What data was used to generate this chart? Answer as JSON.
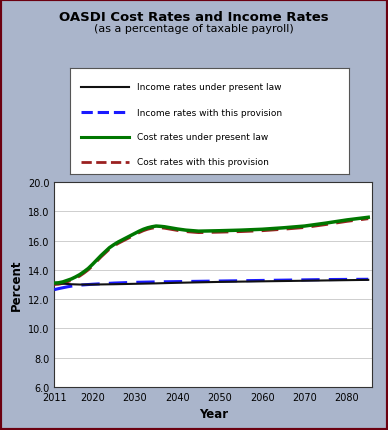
{
  "title": "OASDI Cost Rates and Income Rates",
  "subtitle": "(as a percentage of taxable payroll)",
  "xlabel": "Year",
  "ylabel": "Percent",
  "ylim": [
    6.0,
    20.0
  ],
  "yticks": [
    6.0,
    8.0,
    10.0,
    12.0,
    14.0,
    16.0,
    18.0,
    20.0
  ],
  "xticks": [
    2011,
    2020,
    2030,
    2040,
    2050,
    2060,
    2070,
    2080
  ],
  "xlim": [
    2011,
    2086
  ],
  "background_color": "#aab5cb",
  "plot_bg_color": "#ffffff",
  "border_color": "#6b0010",
  "legend_labels": [
    "Income rates under present law",
    "Income rates with this provision",
    "Cost rates under present law",
    "Cost rates with this provision"
  ],
  "income_present_law_x": [
    2011,
    2012,
    2013,
    2014,
    2015,
    2016,
    2017,
    2018,
    2019,
    2020,
    2025,
    2030,
    2035,
    2040,
    2045,
    2050,
    2055,
    2060,
    2065,
    2070,
    2075,
    2080,
    2085
  ],
  "income_present_law_y": [
    13.1,
    13.08,
    13.06,
    13.04,
    13.02,
    13.01,
    13.0,
    13.0,
    13.0,
    13.0,
    13.02,
    13.05,
    13.08,
    13.12,
    13.15,
    13.18,
    13.2,
    13.22,
    13.24,
    13.26,
    13.28,
    13.3,
    13.32
  ],
  "income_provision_x": [
    2011,
    2012,
    2013,
    2014,
    2015,
    2016,
    2017,
    2018,
    2019,
    2020,
    2025,
    2030,
    2035,
    2040,
    2045,
    2050,
    2055,
    2060,
    2065,
    2070,
    2075,
    2080,
    2085
  ],
  "income_provision_y": [
    12.65,
    12.72,
    12.78,
    12.84,
    12.89,
    12.93,
    12.96,
    12.98,
    13.0,
    13.02,
    13.1,
    13.15,
    13.18,
    13.2,
    13.22,
    13.24,
    13.26,
    13.28,
    13.3,
    13.32,
    13.34,
    13.35,
    13.36
  ],
  "cost_present_law_x": [
    2011,
    2012,
    2013,
    2014,
    2015,
    2016,
    2017,
    2018,
    2019,
    2020,
    2021,
    2022,
    2023,
    2024,
    2025,
    2026,
    2027,
    2028,
    2029,
    2030,
    2031,
    2032,
    2033,
    2034,
    2035,
    2036,
    2037,
    2038,
    2039,
    2040,
    2042,
    2045,
    2050,
    2055,
    2060,
    2065,
    2070,
    2075,
    2080,
    2085
  ],
  "cost_present_law_y": [
    13.1,
    13.12,
    13.18,
    13.28,
    13.38,
    13.52,
    13.68,
    13.88,
    14.1,
    14.38,
    14.68,
    14.98,
    15.25,
    15.52,
    15.72,
    15.9,
    16.05,
    16.2,
    16.35,
    16.5,
    16.65,
    16.78,
    16.88,
    16.95,
    17.0,
    16.98,
    16.95,
    16.9,
    16.85,
    16.8,
    16.72,
    16.65,
    16.68,
    16.72,
    16.78,
    16.88,
    17.0,
    17.2,
    17.42,
    17.6
  ],
  "cost_provision_x": [
    2011,
    2012,
    2013,
    2014,
    2015,
    2016,
    2017,
    2018,
    2019,
    2020,
    2021,
    2022,
    2023,
    2024,
    2025,
    2026,
    2027,
    2028,
    2029,
    2030,
    2031,
    2032,
    2033,
    2034,
    2035,
    2036,
    2037,
    2038,
    2039,
    2040,
    2042,
    2045,
    2050,
    2055,
    2060,
    2065,
    2070,
    2075,
    2080,
    2085
  ],
  "cost_provision_y": [
    13.0,
    13.02,
    13.08,
    13.18,
    13.28,
    13.42,
    13.58,
    13.78,
    14.0,
    14.28,
    14.58,
    14.88,
    15.15,
    15.42,
    15.62,
    15.8,
    15.95,
    16.1,
    16.25,
    16.4,
    16.55,
    16.68,
    16.78,
    16.85,
    16.9,
    16.88,
    16.85,
    16.8,
    16.75,
    16.7,
    16.62,
    16.55,
    16.58,
    16.62,
    16.68,
    16.78,
    16.9,
    17.1,
    17.32,
    17.5
  ]
}
